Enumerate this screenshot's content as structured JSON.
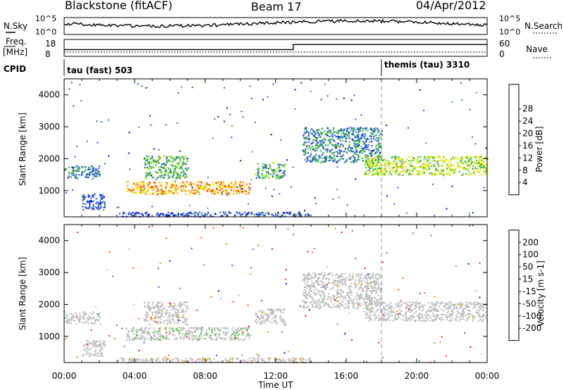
{
  "header": {
    "site": "Blackstone (fitACF)",
    "beam": "Beam 17",
    "date": "04/Apr/2012"
  },
  "noise_panel": {
    "left_label": "N.Sky",
    "left_ticks": [
      "10^5",
      "10^0"
    ],
    "right_ticks": [
      "10^5",
      "10^0"
    ],
    "right_label": "N.Search"
  },
  "freq_panel": {
    "left_label_1": "Freq.",
    "left_label_2": "[MHz]",
    "left_ticks": [
      "18",
      "8"
    ],
    "right_ticks": [
      "60",
      "0"
    ],
    "right_label": "Nave"
  },
  "cpid_panel": {
    "label": "CPID",
    "modes": [
      {
        "name": "tau (fast) 503",
        "start_hour": 0
      },
      {
        "name": "themis (tau) 3310",
        "start_hour": 18
      }
    ]
  },
  "colors": {
    "power": [
      "#0000ff",
      "#3050ff",
      "#2f7f7f",
      "#40c040",
      "#a0f000",
      "#ffe000",
      "#ff9000",
      "#ff4000",
      "#ff0000"
    ],
    "velocity": [
      "#0000ff",
      "#3060ff",
      "#2f7f7f",
      "#40c040",
      "#c0c0c0",
      "#ff9000",
      "#ff6000",
      "#ff3000",
      "#ff0000"
    ]
  },
  "chart_data": [
    {
      "type": "heatmap",
      "name": "power",
      "xlabel": "",
      "ylabel": "Slant Range [km]",
      "xlim": [
        0,
        24
      ],
      "ylim": [
        180,
        4500
      ],
      "y_ticks": [
        "1000",
        "2000",
        "3000",
        "4000"
      ],
      "colorbar": {
        "label": "Power [dB]",
        "ticks": [
          "4",
          "8",
          "12",
          "16",
          "20",
          "24",
          "28"
        ],
        "range": [
          0,
          32
        ]
      },
      "echo_regions": [
        {
          "t0": 0.0,
          "t1": 2.0,
          "r0": 1400,
          "r1": 1800,
          "value": 8
        },
        {
          "t0": 1.0,
          "t1": 2.3,
          "r0": 400,
          "r1": 900,
          "value": 6
        },
        {
          "t0": 3.5,
          "t1": 10.5,
          "r0": 900,
          "r1": 1300,
          "value": 22
        },
        {
          "t0": 4.5,
          "t1": 7.0,
          "r0": 1400,
          "r1": 2100,
          "value": 12
        },
        {
          "t0": 10.8,
          "t1": 12.5,
          "r0": 1400,
          "r1": 1900,
          "value": 11
        },
        {
          "t0": 13.5,
          "t1": 18.0,
          "r0": 1900,
          "r1": 3000,
          "value": 9
        },
        {
          "t0": 17.0,
          "t1": 24.0,
          "r0": 1500,
          "r1": 2100,
          "value": 16
        },
        {
          "t0": 3.0,
          "t1": 14.0,
          "r0": 200,
          "r1": 350,
          "value": 6
        }
      ]
    },
    {
      "type": "heatmap",
      "name": "velocity",
      "xlabel": "Time UT",
      "ylabel": "Slant Range [km]",
      "xlim": [
        0,
        24
      ],
      "ylim": [
        180,
        4500
      ],
      "x_ticks": [
        "00:00",
        "04:00",
        "08:00",
        "12:00",
        "16:00",
        "20:00",
        "00:00"
      ],
      "y_ticks": [
        "1000",
        "2000",
        "3000",
        "4000"
      ],
      "colorbar": {
        "label": "Velocity [m s-1]",
        "ticks": [
          "200",
          "100",
          "50",
          "15",
          "-15",
          "-50",
          "-100",
          "-200"
        ],
        "range": [
          -250,
          250
        ]
      },
      "echo_regions": [
        {
          "t0": 0.0,
          "t1": 2.0,
          "r0": 1400,
          "r1": 1800,
          "value": 0
        },
        {
          "t0": 1.0,
          "t1": 2.3,
          "r0": 400,
          "r1": 900,
          "value": 0
        },
        {
          "t0": 3.5,
          "t1": 10.5,
          "r0": 900,
          "r1": 1300,
          "value": -40
        },
        {
          "t0": 4.5,
          "t1": 7.0,
          "r0": 1400,
          "r1": 2100,
          "value": 20
        },
        {
          "t0": 10.8,
          "t1": 12.5,
          "r0": 1400,
          "r1": 1900,
          "value": 0
        },
        {
          "t0": 13.5,
          "t1": 18.0,
          "r0": 1900,
          "r1": 3000,
          "value": 0
        },
        {
          "t0": 17.0,
          "t1": 24.0,
          "r0": 1500,
          "r1": 2100,
          "value": 0
        },
        {
          "t0": 3.0,
          "t1": 14.0,
          "r0": 200,
          "r1": 350,
          "value": 30
        }
      ]
    }
  ]
}
